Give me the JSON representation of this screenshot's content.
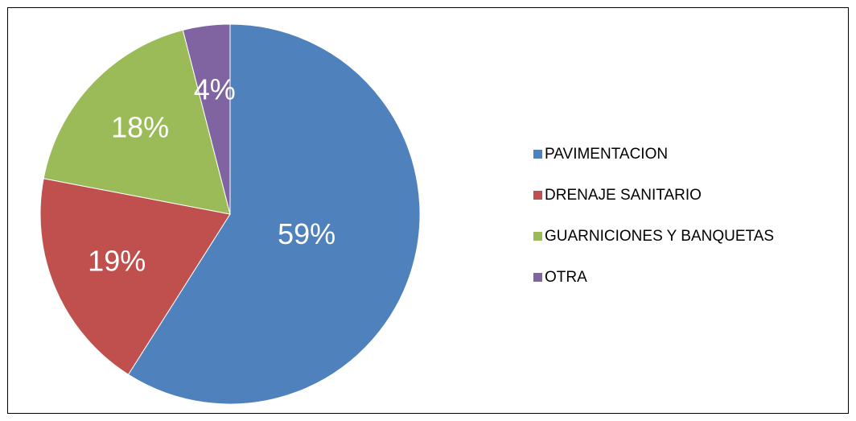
{
  "chart_data": {
    "type": "pie",
    "categories": [
      "PAVIMENTACION",
      "DRENAJE SANITARIO",
      "GUARNICIONES Y BANQUETAS",
      "OTRA"
    ],
    "values": [
      59,
      19,
      18,
      4
    ],
    "value_labels": [
      "59%",
      "19%",
      "18%",
      "4%"
    ],
    "colors": [
      "#4f81bd",
      "#c0504d",
      "#9bbb59",
      "#8064a2"
    ],
    "legend": "right"
  }
}
